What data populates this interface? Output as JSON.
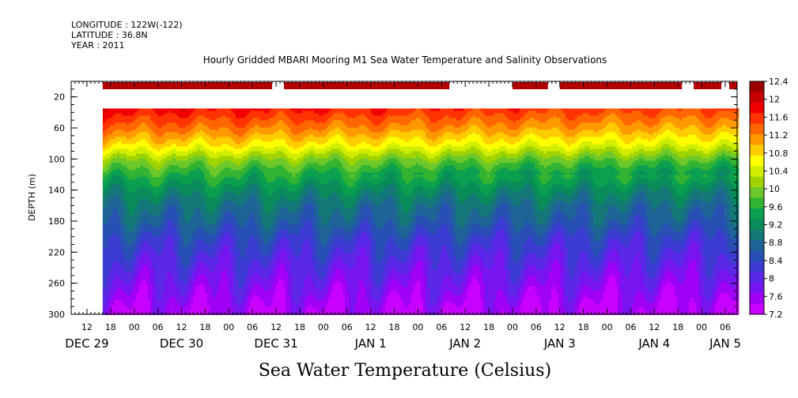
{
  "header": {
    "longitude": "LONGITUDE : 122W(-122)",
    "latitude": "LATITUDE : 36.8N",
    "year": "YEAR : 2011"
  },
  "chart_data": {
    "type": "heatmap",
    "title": "Hourly Gridded MBARI Mooring M1 Sea Water Temperature and Salinity Observations",
    "xlabel": "Sea Water Temperature (Celsius)",
    "ylabel": "DEPTH (m)",
    "y_axis": {
      "reversed": true,
      "range": [
        0,
        300
      ],
      "ticks": [
        20,
        60,
        100,
        140,
        180,
        220,
        260,
        300
      ],
      "tick_labels": [
        "20",
        "60",
        "100",
        "140",
        "180",
        "220",
        "260",
        "300"
      ]
    },
    "x_axis": {
      "unit": "hours since DEC 29 00:00",
      "range": [
        8,
        177
      ],
      "hour_ticks": [
        12,
        18,
        24,
        30,
        36,
        42,
        48,
        54,
        60,
        66,
        72,
        78,
        84,
        90,
        96,
        102,
        108,
        114,
        120,
        126,
        132,
        138,
        144,
        150,
        156,
        162,
        168,
        174
      ],
      "hour_labels": [
        "12",
        "18",
        "00",
        "06",
        "12",
        "18",
        "00",
        "06",
        "12",
        "18",
        "00",
        "06",
        "12",
        "18",
        "00",
        "06",
        "12",
        "18",
        "00",
        "06",
        "12",
        "18",
        "00",
        "06",
        "12",
        "18",
        "00",
        "06"
      ],
      "date_labels": [
        {
          "hour": 12,
          "label": "DEC 29"
        },
        {
          "hour": 36,
          "label": "DEC 30"
        },
        {
          "hour": 60,
          "label": "DEC 31"
        },
        {
          "hour": 84,
          "label": "JAN 1"
        },
        {
          "hour": 108,
          "label": "JAN 2"
        },
        {
          "hour": 132,
          "label": "JAN 3"
        },
        {
          "hour": 156,
          "label": "JAN 4"
        },
        {
          "hour": 174,
          "label": "JAN 5"
        }
      ]
    },
    "data_start_hour": 16,
    "surface_segments": [
      {
        "start": 16,
        "end": 59
      },
      {
        "start": 62,
        "end": 104
      },
      {
        "start": 120,
        "end": 129
      },
      {
        "start": 132,
        "end": 163
      },
      {
        "start": 166,
        "end": 173
      },
      {
        "start": 175,
        "end": 177
      }
    ],
    "colorbar": {
      "levels": [
        "12.4",
        "12",
        "11.6",
        "11.2",
        "10.8",
        "10.4",
        "10",
        "9.6",
        "9.2",
        "8.8",
        "8.4",
        "8",
        "7.6",
        "7.2"
      ],
      "min": 7.2,
      "max": 12.4,
      "colors": [
        "#9a0000",
        "#c80000",
        "#f00000",
        "#ff3300",
        "#ff6600",
        "#ff9900",
        "#ffcc00",
        "#ffff00",
        "#d2ee00",
        "#a0d400",
        "#6ec82a",
        "#32b432",
        "#0aa050",
        "#0a8c5a",
        "#147878",
        "#1e6496",
        "#2850b4",
        "#3c3cd2",
        "#5a28e6",
        "#7814f0",
        "#a000f5",
        "#c800ff"
      ]
    },
    "depth_profile_mean": [
      {
        "depth": 35,
        "temp": 11.8
      },
      {
        "depth": 60,
        "temp": 11.3
      },
      {
        "depth": 80,
        "temp": 10.8
      },
      {
        "depth": 100,
        "temp": 10.1
      },
      {
        "depth": 120,
        "temp": 9.6
      },
      {
        "depth": 140,
        "temp": 9.2
      },
      {
        "depth": 160,
        "temp": 8.9
      },
      {
        "depth": 180,
        "temp": 8.7
      },
      {
        "depth": 200,
        "temp": 8.4
      },
      {
        "depth": 220,
        "temp": 8.2
      },
      {
        "depth": 240,
        "temp": 8.0
      },
      {
        "depth": 260,
        "temp": 7.8
      },
      {
        "depth": 280,
        "temp": 7.6
      },
      {
        "depth": 300,
        "temp": 7.4
      }
    ]
  }
}
